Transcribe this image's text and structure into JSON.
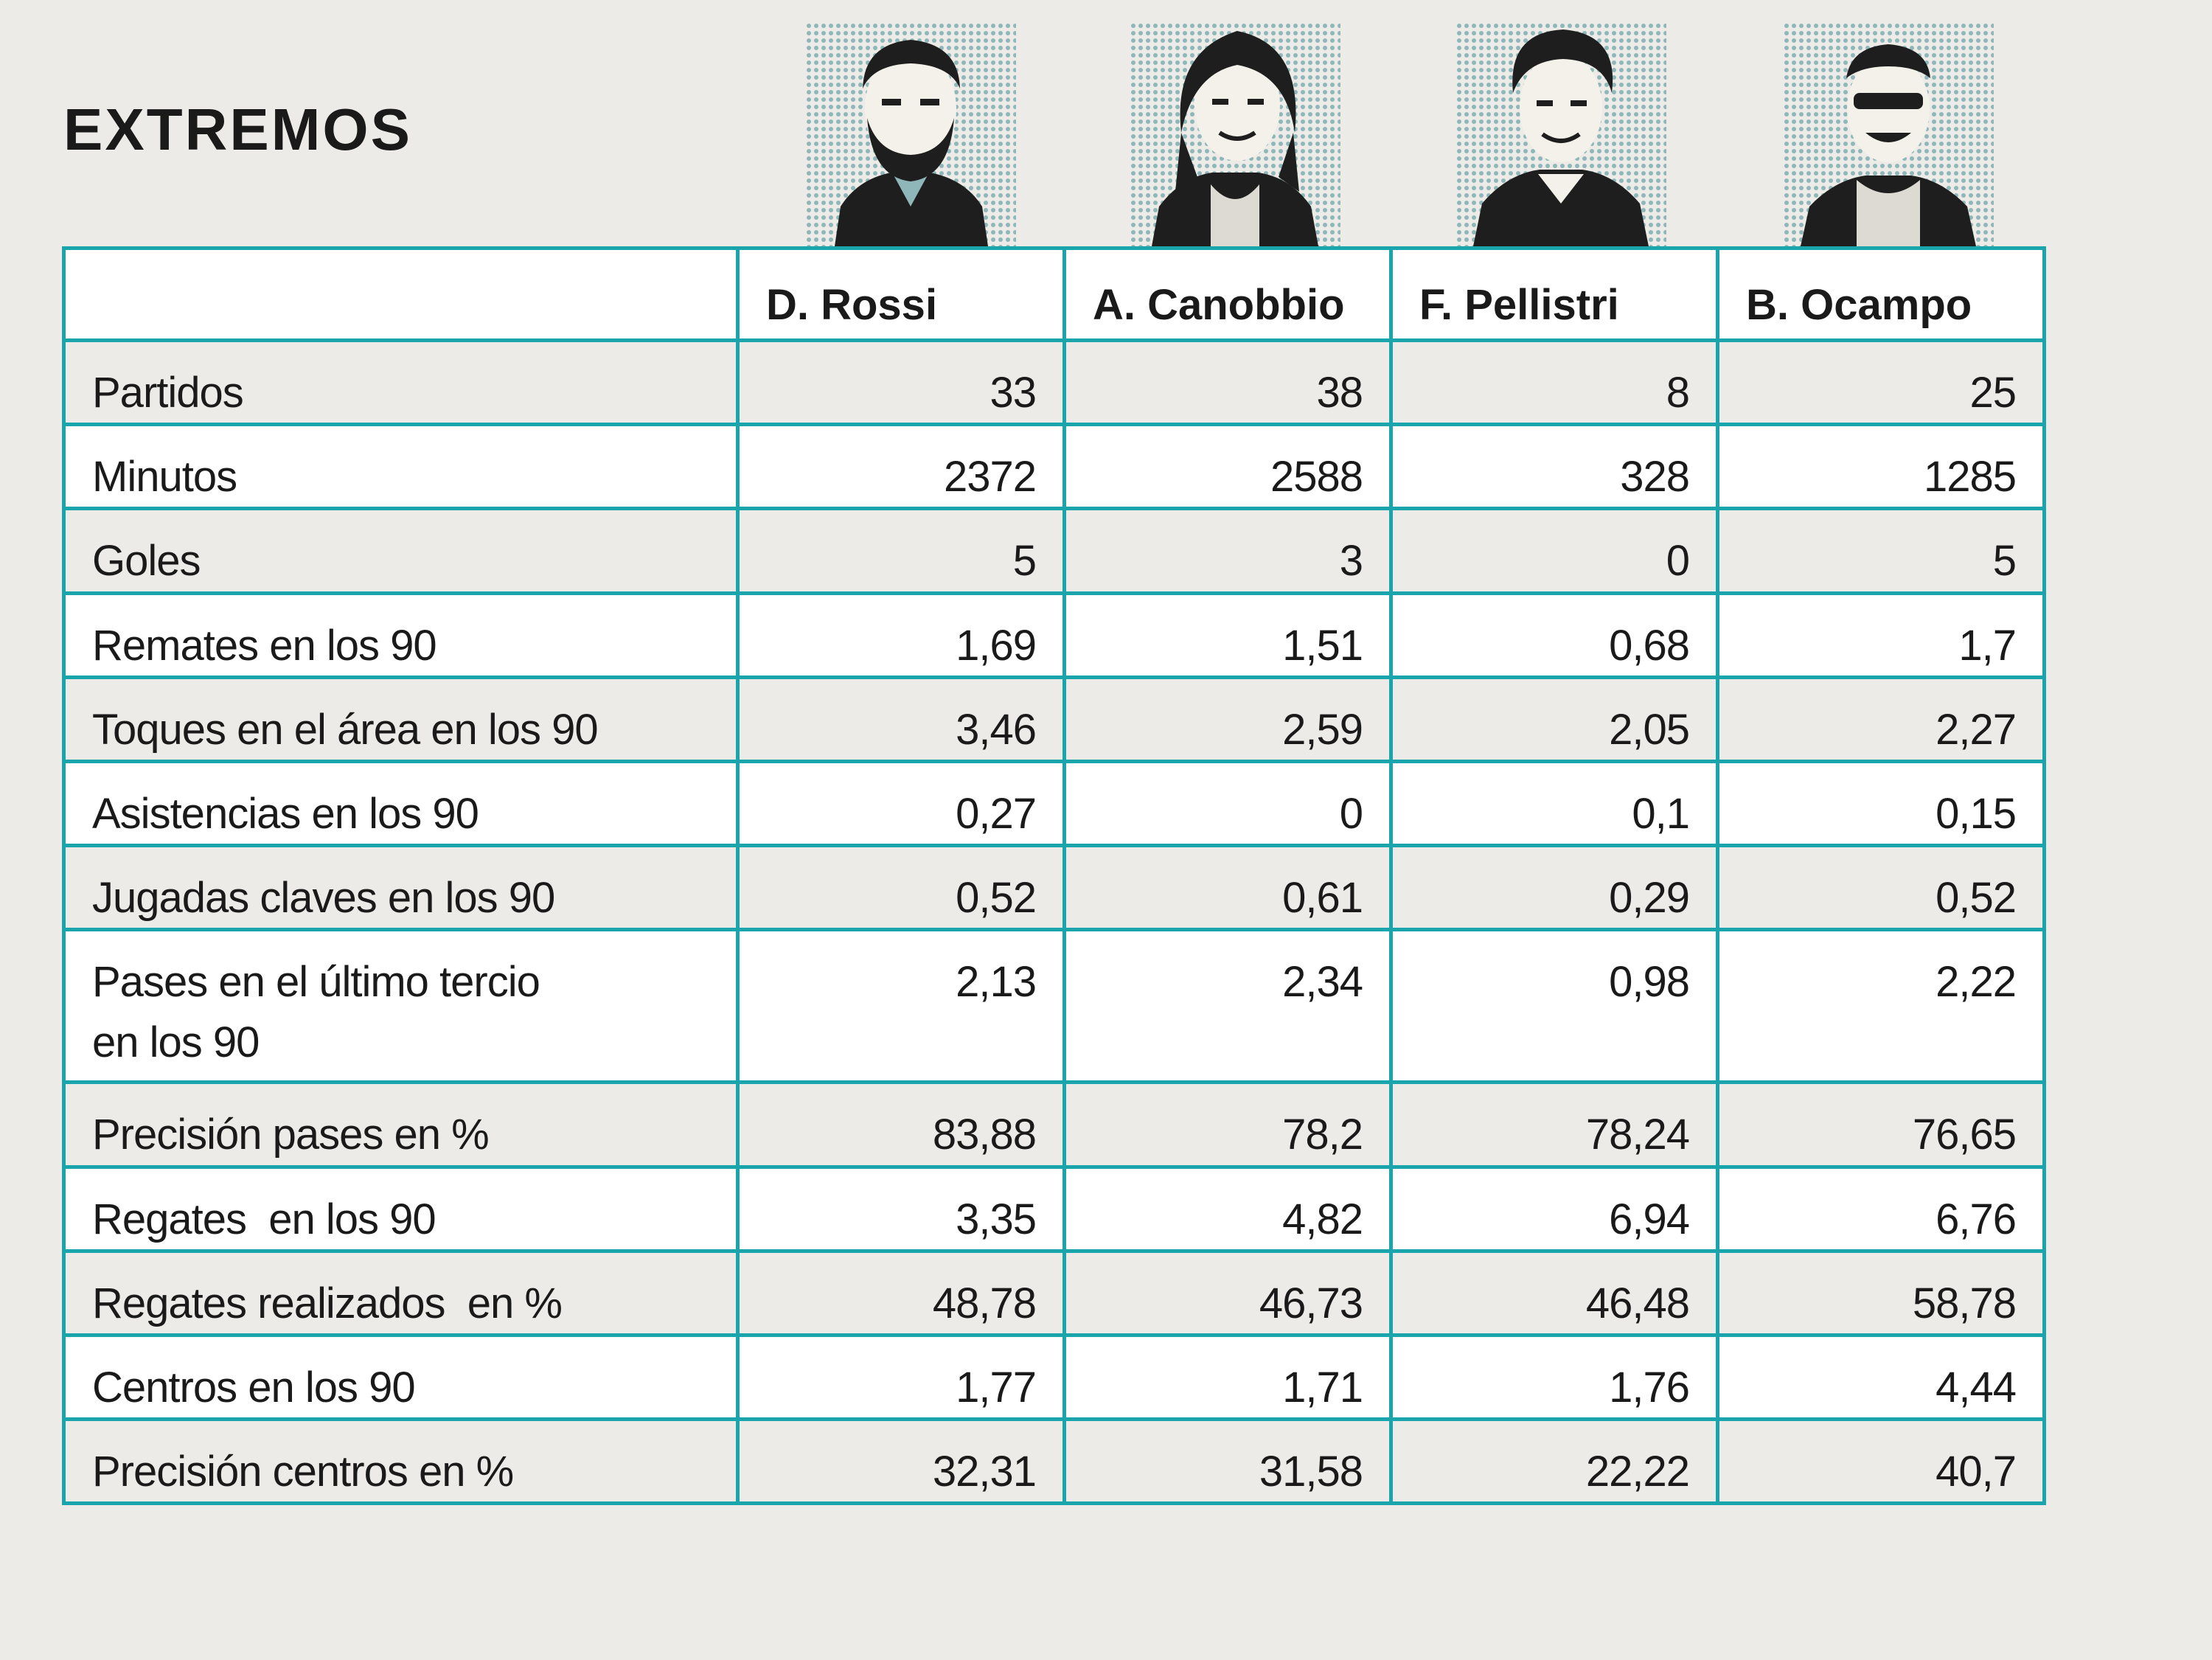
{
  "title": "EXTREMOS",
  "colors": {
    "border": "#1aa5ac",
    "background": "#ecebe7",
    "row_white": "#ffffff",
    "portrait_halftone": "#8fb6b8",
    "ink": "#1a1a1a"
  },
  "players": [
    {
      "name": "D. Rossi",
      "portrait": "player-photo"
    },
    {
      "name": "A. Canobbio",
      "portrait": "player-photo"
    },
    {
      "name": "F. Pellistri",
      "portrait": "player-photo"
    },
    {
      "name": "B. Ocampo",
      "portrait": "player-photo"
    }
  ],
  "rows": [
    {
      "label": "Partidos",
      "values": [
        "33",
        "38",
        "8",
        "25"
      ]
    },
    {
      "label": "Minutos",
      "values": [
        "2372",
        "2588",
        "328",
        "1285"
      ]
    },
    {
      "label": "Goles",
      "values": [
        "5",
        "3",
        "0",
        "5"
      ]
    },
    {
      "label": "Remates en los 90",
      "values": [
        "1,69",
        "1,51",
        "0,68",
        "1,7"
      ]
    },
    {
      "label": "Toques en el área en los 90",
      "values": [
        "3,46",
        "2,59",
        "2,05",
        "2,27"
      ]
    },
    {
      "label": "Asistencias en los 90",
      "values": [
        "0,27",
        "0",
        "0,1",
        "0,15"
      ]
    },
    {
      "label": "Jugadas claves en los 90",
      "values": [
        "0,52",
        "0,61",
        "0,29",
        "0,52"
      ]
    },
    {
      "label": "Pases en el último tercio",
      "label2": "en los 90",
      "values": [
        "2,13",
        "2,34",
        "0,98",
        "2,22"
      ]
    },
    {
      "label": "Precisión pases en %",
      "values": [
        "83,88",
        "78,2",
        "78,24",
        "76,65"
      ]
    },
    {
      "label": "Regates  en los 90",
      "values": [
        "3,35",
        "4,82",
        "6,94",
        "6,76"
      ]
    },
    {
      "label": "Regates realizados  en %",
      "values": [
        "48,78",
        "46,73",
        "46,48",
        "58,78"
      ]
    },
    {
      "label": "Centros en los 90",
      "values": [
        "1,77",
        "1,71",
        "1,76",
        "4,44"
      ]
    },
    {
      "label": "Precisión centros en %",
      "values": [
        "32,31",
        "31,58",
        "22,22",
        "40,7"
      ]
    }
  ]
}
